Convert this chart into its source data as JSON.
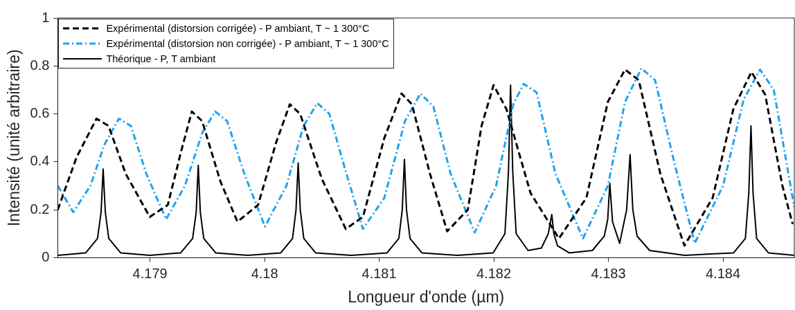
{
  "chart_data": {
    "type": "line",
    "xlabel": "Longueur d'onde (µm)",
    "ylabel": "Intensité (unité arbitraire)",
    "xlim": [
      4.178195,
      4.184622
    ],
    "xticks": [
      4.179,
      4.18,
      4.181,
      4.182,
      4.183,
      4.184
    ],
    "ylim": [
      0,
      1
    ],
    "yticks": [
      0,
      0.2,
      0.4,
      0.6,
      0.8,
      1
    ],
    "legend": "top left",
    "marker": "none",
    "series": [
      {
        "name": "Expérimental (distorsion corrigée) - P ambiant, T ~ 1 300°C",
        "color": "#000000",
        "line_style": "dashed",
        "x": [
          4.178195,
          4.17836,
          4.178533,
          4.178638,
          4.178788,
          4.178998,
          4.179155,
          4.179275,
          4.179365,
          4.179455,
          4.179613,
          4.179763,
          4.179943,
          4.1801,
          4.18022,
          4.18031,
          4.180498,
          4.180708,
          4.180858,
          4.181045,
          4.181195,
          4.181285,
          4.181443,
          4.181593,
          4.181773,
          4.181893,
          4.181998,
          4.18211,
          4.18232,
          4.182568,
          4.182808,
          4.182995,
          4.183145,
          4.183265,
          4.183453,
          4.183663,
          4.18391,
          4.18409,
          4.184248,
          4.184368,
          4.184518,
          4.184608
        ],
        "values": [
          0.2,
          0.42,
          0.58,
          0.55,
          0.35,
          0.17,
          0.22,
          0.45,
          0.61,
          0.57,
          0.32,
          0.15,
          0.22,
          0.48,
          0.64,
          0.6,
          0.33,
          0.12,
          0.17,
          0.5,
          0.685,
          0.64,
          0.35,
          0.11,
          0.2,
          0.55,
          0.72,
          0.62,
          0.27,
          0.08,
          0.25,
          0.65,
          0.785,
          0.74,
          0.35,
          0.05,
          0.25,
          0.62,
          0.775,
          0.68,
          0.3,
          0.14
        ]
      },
      {
        "name": "Expérimental (distorsion non corrigée) - P ambiant, T ~ 1 300°C",
        "color": "#1fa3f0",
        "line_style": "dashdot",
        "x": [
          4.178195,
          4.17833,
          4.17848,
          4.1786,
          4.178728,
          4.178833,
          4.178968,
          4.17914,
          4.179305,
          4.179455,
          4.179568,
          4.179673,
          4.179823,
          4.180003,
          4.18019,
          4.18034,
          4.18046,
          4.180565,
          4.180708,
          4.180858,
          4.181045,
          4.181225,
          4.18136,
          4.181473,
          4.181623,
          4.181833,
          4.18202,
          4.18217,
          4.18226,
          4.182373,
          4.182538,
          4.182778,
          4.182995,
          4.183145,
          4.183288,
          4.183408,
          4.183573,
          4.183753,
          4.184,
          4.18418,
          4.184323,
          4.184443,
          4.184622
        ],
        "values": [
          0.3,
          0.19,
          0.3,
          0.47,
          0.58,
          0.55,
          0.35,
          0.16,
          0.3,
          0.52,
          0.61,
          0.57,
          0.35,
          0.13,
          0.3,
          0.55,
          0.645,
          0.6,
          0.36,
          0.12,
          0.25,
          0.57,
          0.685,
          0.63,
          0.35,
          0.105,
          0.3,
          0.64,
          0.725,
          0.69,
          0.35,
          0.08,
          0.3,
          0.65,
          0.79,
          0.74,
          0.4,
          0.06,
          0.3,
          0.66,
          0.785,
          0.7,
          0.21
        ]
      },
      {
        "name": "Théorique - P, T ambiant",
        "color": "#000000",
        "line_style": "solid",
        "x": [
          4.178195,
          4.178439,
          4.178542,
          4.178573,
          4.178591,
          4.17861,
          4.17864,
          4.178744,
          4.179,
          4.179268,
          4.179372,
          4.179403,
          4.179421,
          4.179439,
          4.179469,
          4.179573,
          4.179853,
          4.180141,
          4.180244,
          4.180274,
          4.180293,
          4.180311,
          4.180342,
          4.180445,
          4.180756,
          4.181068,
          4.181171,
          4.181201,
          4.18122,
          4.181238,
          4.181269,
          4.181372,
          4.181683,
          4.181994,
          4.182097,
          4.182128,
          4.182146,
          4.182165,
          4.182195,
          4.182299,
          4.182415,
          4.182475,
          4.182506,
          4.182524,
          4.182555,
          4.182658,
          4.18286,
          4.182964,
          4.182994,
          4.183012,
          4.183036,
          4.183098,
          4.183159,
          4.183189,
          4.183213,
          4.18325,
          4.18336,
          4.183665,
          4.184092,
          4.184195,
          4.184225,
          4.184244,
          4.184262,
          4.184293,
          4.184396,
          4.184622
        ],
        "values": [
          0.01,
          0.02,
          0.08,
          0.19,
          0.37,
          0.19,
          0.08,
          0.02,
          0.01,
          0.02,
          0.08,
          0.19,
          0.385,
          0.19,
          0.08,
          0.02,
          0.01,
          0.02,
          0.08,
          0.2,
          0.395,
          0.2,
          0.08,
          0.02,
          0.01,
          0.02,
          0.08,
          0.2,
          0.41,
          0.2,
          0.08,
          0.02,
          0.01,
          0.02,
          0.1,
          0.36,
          0.72,
          0.36,
          0.1,
          0.03,
          0.04,
          0.1,
          0.18,
          0.1,
          0.05,
          0.02,
          0.03,
          0.09,
          0.16,
          0.31,
          0.15,
          0.06,
          0.2,
          0.43,
          0.2,
          0.09,
          0.03,
          0.01,
          0.02,
          0.08,
          0.27,
          0.55,
          0.27,
          0.08,
          0.02,
          0.01
        ]
      }
    ]
  }
}
